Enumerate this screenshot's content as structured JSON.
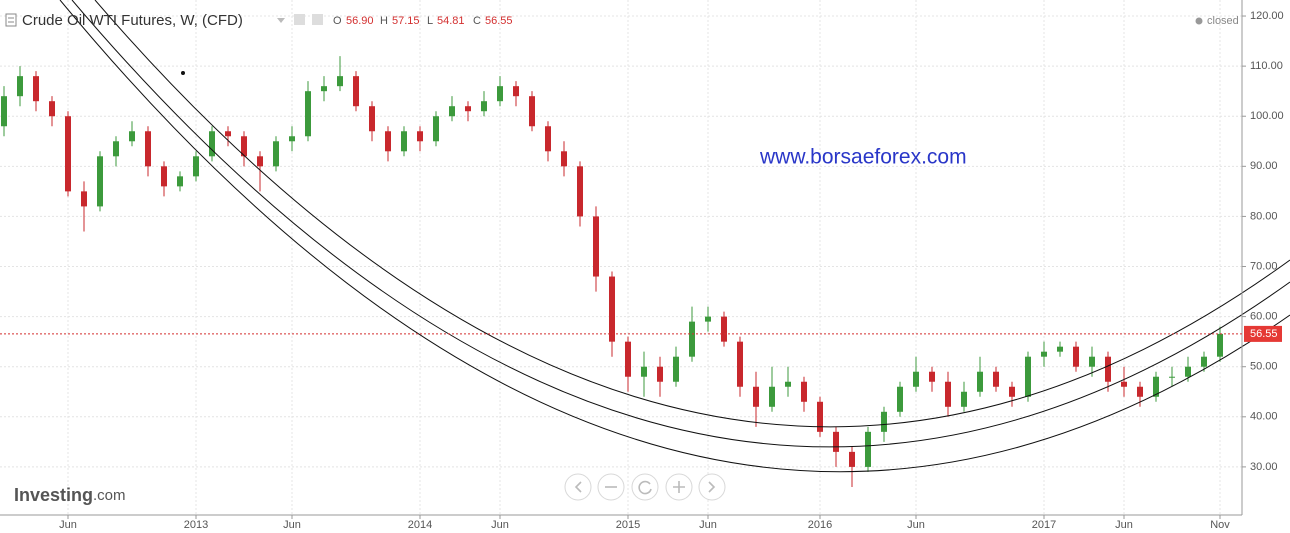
{
  "header": {
    "title": "Crude Oil WTI Futures, W, (CFD)",
    "o_label": "O",
    "o": "56.90",
    "h_label": "H",
    "h": "57.15",
    "l_label": "L",
    "l": "54.81",
    "c_label": "C",
    "c": "56.55",
    "status": "closed",
    "watermark": "www.borsaeforex.com",
    "logo": "Investing",
    "logo_suffix": ".com"
  },
  "chart_data": {
    "type": "candlestick",
    "up_color": "#3c9a3c",
    "down_color": "#c8282d",
    "grid": true,
    "categories": [
      null,
      null,
      null,
      null,
      "Jun",
      null,
      null,
      null,
      null,
      null,
      null,
      null,
      "2013",
      null,
      null,
      null,
      null,
      null,
      "Jun",
      null,
      null,
      null,
      null,
      null,
      null,
      null,
      "2014",
      null,
      null,
      null,
      null,
      "Jun",
      null,
      null,
      null,
      null,
      null,
      null,
      null,
      "2015",
      null,
      null,
      null,
      null,
      "Jun",
      null,
      null,
      null,
      null,
      null,
      null,
      "2016",
      null,
      null,
      null,
      null,
      null,
      "Jun",
      null,
      null,
      null,
      null,
      null,
      null,
      null,
      "2017",
      null,
      null,
      null,
      null,
      "Jun",
      null,
      null,
      null,
      null,
      null,
      "Nov"
    ],
    "open": [
      98,
      104,
      108,
      103,
      100,
      85,
      82,
      92,
      95,
      97,
      90,
      86,
      88,
      92,
      97,
      96,
      92,
      90,
      95,
      96,
      105,
      106,
      108,
      102,
      97,
      93,
      97,
      95,
      100,
      102,
      101,
      103,
      106,
      104,
      98,
      93,
      90,
      80,
      68,
      55,
      48,
      50,
      47,
      52,
      59,
      60,
      55,
      46,
      42,
      46,
      47,
      43,
      37,
      33,
      30,
      37,
      41,
      46,
      49,
      47,
      42,
      45,
      49,
      46,
      44,
      52,
      53,
      54,
      50,
      52,
      47,
      46,
      44,
      48,
      48,
      50,
      52
    ],
    "high": [
      106,
      110,
      109,
      104,
      101,
      87,
      93,
      96,
      99,
      98,
      91,
      89,
      93,
      98,
      98,
      97,
      93,
      96,
      98,
      107,
      108,
      112,
      109,
      103,
      98,
      98,
      98,
      101,
      104,
      103,
      105,
      108,
      107,
      105,
      99,
      95,
      91,
      82,
      69,
      56,
      53,
      52,
      54,
      62,
      62,
      61,
      56,
      49,
      50,
      50,
      48,
      44,
      38,
      34,
      38,
      42,
      47,
      52,
      50,
      49,
      47,
      52,
      50,
      47,
      53,
      55,
      55,
      55,
      54,
      53,
      50,
      47,
      49,
      50,
      52,
      53,
      58
    ],
    "low": [
      96,
      102,
      101,
      98,
      84,
      77,
      81,
      90,
      94,
      88,
      84,
      85,
      87,
      91,
      94,
      90,
      85,
      89,
      93,
      95,
      103,
      105,
      101,
      95,
      91,
      92,
      93,
      94,
      99,
      99,
      100,
      102,
      102,
      97,
      91,
      88,
      78,
      65,
      52,
      45,
      44,
      44,
      46,
      51,
      57,
      54,
      44,
      38,
      41,
      44,
      41,
      36,
      30,
      26,
      29,
      35,
      40,
      45,
      45,
      40,
      41,
      44,
      45,
      42,
      43,
      50,
      52,
      49,
      48,
      45,
      44,
      42,
      43,
      46,
      47,
      49,
      51
    ],
    "close": [
      104,
      108,
      103,
      100,
      85,
      82,
      92,
      95,
      97,
      90,
      86,
      88,
      92,
      97,
      96,
      92,
      90,
      95,
      96,
      105,
      106,
      108,
      102,
      97,
      93,
      97,
      95,
      100,
      102,
      101,
      103,
      106,
      104,
      98,
      93,
      90,
      80,
      68,
      55,
      48,
      50,
      47,
      52,
      59,
      60,
      55,
      46,
      42,
      46,
      47,
      43,
      37,
      33,
      30,
      37,
      41,
      46,
      49,
      47,
      42,
      45,
      49,
      46,
      44,
      52,
      53,
      54,
      50,
      52,
      47,
      46,
      44,
      48,
      48,
      50,
      52,
      56.55
    ],
    "last_price": 56.55,
    "ylim": [
      20.4,
      123.2
    ],
    "yticks": [
      {
        "value": 30,
        "label": "30.00"
      },
      {
        "value": 40,
        "label": "40.00"
      },
      {
        "value": 50,
        "label": "50.00"
      },
      {
        "value": 60,
        "label": "60.00"
      },
      {
        "value": 70,
        "label": "70.00"
      },
      {
        "value": 80,
        "label": "80.00"
      },
      {
        "value": 90,
        "label": "90.00"
      },
      {
        "value": 100,
        "label": "100.00"
      },
      {
        "value": 110,
        "label": "110.00"
      },
      {
        "value": 120,
        "label": "120.00"
      }
    ]
  }
}
